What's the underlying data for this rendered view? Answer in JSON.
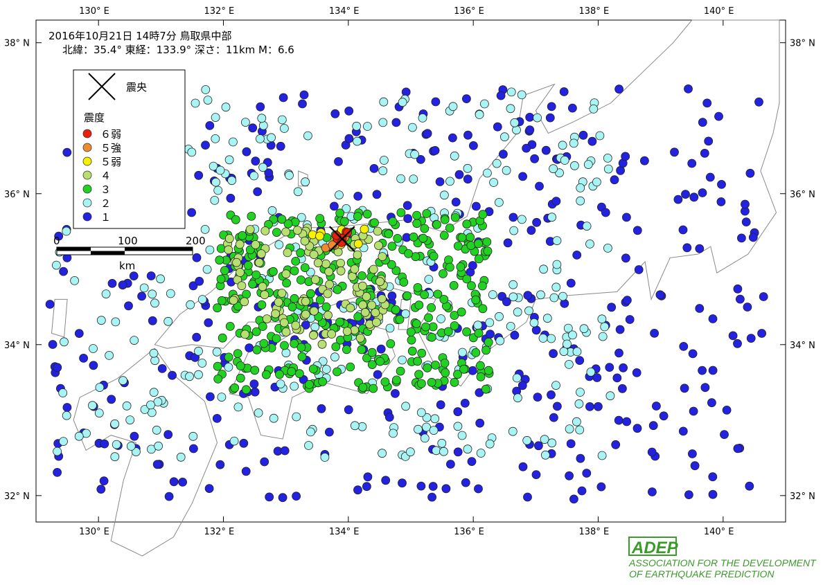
{
  "title": {
    "line1": "2016年10月21日 14時7分  鳥取県中部",
    "line2": "北緯：35.4°  東経：133.9°  深さ：11km   M：6.6"
  },
  "epicenter": {
    "lon": 133.9,
    "lat": 35.4
  },
  "axes": {
    "lon_range": [
      129.0,
      141.0
    ],
    "lat_range": [
      31.65,
      38.3
    ],
    "lon_ticks": [
      130,
      132,
      134,
      136,
      138,
      140
    ],
    "lat_ticks": [
      32,
      34,
      36,
      38
    ],
    "lon_tick_labels": [
      "130° E",
      "132° E",
      "134° E",
      "136° E",
      "138° E",
      "140° E"
    ],
    "lat_tick_labels": [
      "32° N",
      "34° N",
      "36° N",
      "38° N"
    ]
  },
  "legend": {
    "epicenter_label": "震央",
    "intensity_title": "震度",
    "items": [
      {
        "label": "６弱",
        "color": "#e8200c"
      },
      {
        "label": "５強",
        "color": "#f08a30"
      },
      {
        "label": "５弱",
        "color": "#f7f000"
      },
      {
        "label": "４",
        "color": "#b8e070"
      },
      {
        "label": "３",
        "color": "#22d222"
      },
      {
        "label": "２",
        "color": "#a8f4f4"
      },
      {
        "label": "１",
        "color": "#2222e0"
      }
    ]
  },
  "scale_bar": {
    "ticks": [
      "0",
      "100",
      "200"
    ],
    "unit": "km"
  },
  "logo": {
    "mark": "ADEP",
    "line1": "ASSOCIATION  FOR THE DEVELOPMENT",
    "line2": "OF EARTHQUAKE PREDICTION"
  },
  "colors": {
    "coast": "#888888",
    "prefecture_border": "#aaaaaa",
    "water": "#cfe9f5",
    "brand_green": "#3a9a2a"
  },
  "chart_data": {
    "type": "scatter",
    "x_label": "",
    "y_label": "",
    "clusters": [
      {
        "intensity": "６弱",
        "lon_range": [
          133.7,
          134.0
        ],
        "lat_range": [
          35.35,
          35.5
        ],
        "count": 6
      },
      {
        "intensity": "５強",
        "lon_range": [
          133.6,
          134.1
        ],
        "lat_range": [
          35.25,
          35.5
        ],
        "count": 6
      },
      {
        "intensity": "５弱",
        "lon_range": [
          133.3,
          134.3
        ],
        "lat_range": [
          35.3,
          35.55
        ],
        "count": 8
      },
      {
        "intensity": "４",
        "lon_range": [
          132.0,
          134.6
        ],
        "lat_range": [
          34.0,
          35.55
        ],
        "count": 110
      },
      {
        "intensity": "３",
        "lon_range": [
          131.9,
          136.3
        ],
        "lat_range": [
          33.4,
          35.75
        ],
        "count": 380
      },
      {
        "intensity": "２",
        "lon_range": [
          129.3,
          138.2
        ],
        "lat_range": [
          32.5,
          37.4
        ],
        "count": 380
      },
      {
        "intensity": "１",
        "lon_range": [
          129.2,
          140.7
        ],
        "lat_range": [
          31.95,
          37.4
        ],
        "count": 420
      }
    ]
  }
}
